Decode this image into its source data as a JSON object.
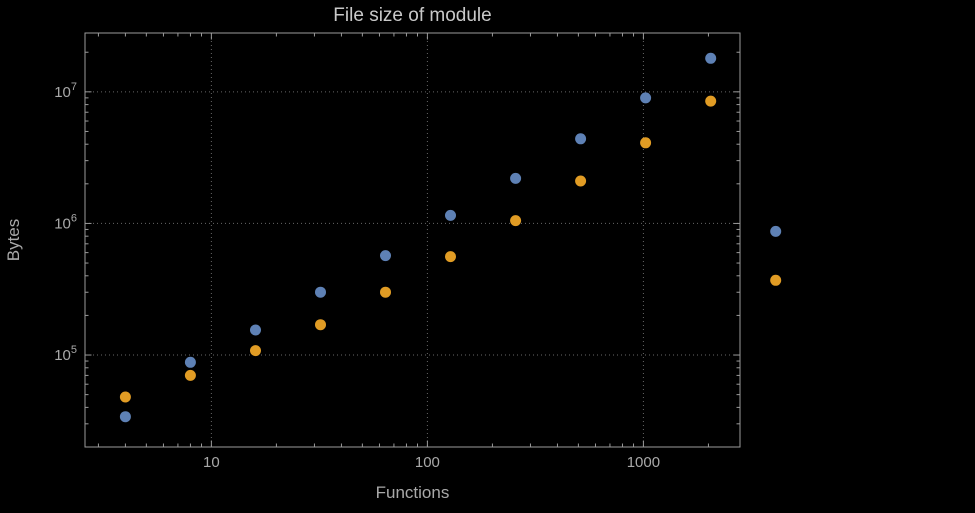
{
  "chart_data": {
    "type": "scatter",
    "title": "File size of module",
    "xlabel": "Functions",
    "ylabel": "Bytes",
    "x_scale": "log",
    "y_scale": "log",
    "grid": "dotted",
    "legend": "none",
    "x_range": [
      2.6,
      2800
    ],
    "y_range": [
      20000,
      28000000
    ],
    "x_ticks": [
      10,
      100,
      1000
    ],
    "x_tick_labels": [
      "10",
      "100",
      "1000"
    ],
    "y_ticks": [
      100000,
      1000000,
      10000000
    ],
    "y_tick_exponents": [
      5,
      6,
      7
    ],
    "y_tick_base": "10",
    "series": [
      {
        "name": "blue",
        "color": "#5e81b5",
        "points": [
          [
            4,
            34000
          ],
          [
            8,
            88000
          ],
          [
            16,
            155000
          ],
          [
            32,
            300000
          ],
          [
            64,
            570000
          ],
          [
            128,
            1150000
          ],
          [
            256,
            2200000
          ],
          [
            512,
            4400000
          ],
          [
            1024,
            9000000
          ],
          [
            2048,
            18000000
          ],
          [
            4096,
            870000
          ]
        ]
      },
      {
        "name": "orange",
        "color": "#e19c24",
        "points": [
          [
            4,
            48000
          ],
          [
            8,
            70000
          ],
          [
            16,
            108000
          ],
          [
            32,
            170000
          ],
          [
            64,
            300000
          ],
          [
            128,
            560000
          ],
          [
            256,
            1050000
          ],
          [
            512,
            2100000
          ],
          [
            1024,
            4100000
          ],
          [
            2048,
            8500000
          ],
          [
            4096,
            370000
          ]
        ]
      }
    ],
    "colors": {
      "background": "#000000",
      "frame": "#9b9b9b",
      "grid": "#676767",
      "tick_text": "#a9a9a9",
      "title_text": "#c9c9c9"
    }
  }
}
